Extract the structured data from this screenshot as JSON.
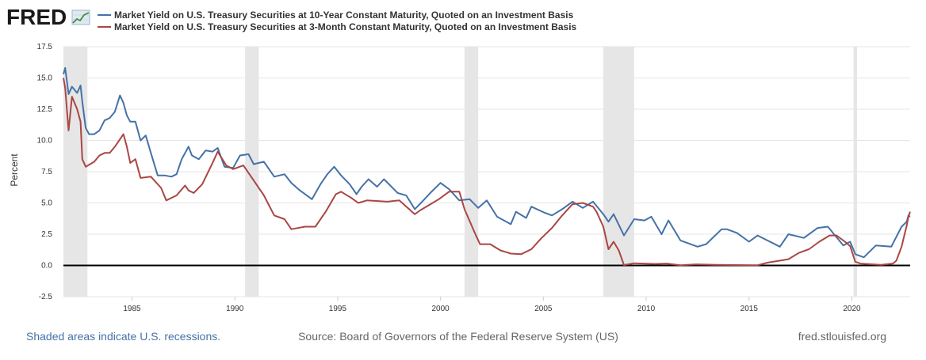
{
  "brand": {
    "logo_text": "FRED"
  },
  "footer": {
    "recession_note": "Shaded areas indicate U.S. recessions.",
    "source": "Source: Board of Governors of the Federal Reserve System (US)",
    "site": "fred.stlouisfed.org"
  },
  "colors": {
    "series_10y": "#4572a7",
    "series_3m": "#aa4643",
    "recession_band": "#e6e6e6",
    "link": "#4572a7",
    "footer_text": "#666666",
    "grid": "#e6e6e6",
    "zero_line": "#000000"
  },
  "chart_data": {
    "type": "line",
    "title": "",
    "xlabel": "",
    "ylabel": "Percent",
    "xlim": [
      "1981-09",
      "2022-11"
    ],
    "ylim": [
      -2.5,
      17.5
    ],
    "yticks": [
      "17.5",
      "15.0",
      "12.5",
      "10.0",
      "7.5",
      "5.0",
      "2.5",
      "0.0",
      "-2.5"
    ],
    "xticks": [
      "1985",
      "1990",
      "1995",
      "2000",
      "2005",
      "2010",
      "2015",
      "2020"
    ],
    "grid": true,
    "legend_position": "top-left",
    "recessions": [
      {
        "start": "1981-07",
        "end": "1982-11"
      },
      {
        "start": "1990-07",
        "end": "1991-03"
      },
      {
        "start": "2001-03",
        "end": "2001-11"
      },
      {
        "start": "2007-12",
        "end": "2009-06"
      },
      {
        "start": "2020-02",
        "end": "2020-04"
      }
    ],
    "series": [
      {
        "name": "Market Yield on U.S. Treasury Securities at 10-Year Constant Maturity, Quoted on an Investment Basis",
        "color": "#4572a7",
        "points": [
          [
            "1981-09",
            15.3
          ],
          [
            "1981-10",
            15.8
          ],
          [
            "1981-12",
            13.7
          ],
          [
            "1982-02",
            14.3
          ],
          [
            "1982-05",
            13.8
          ],
          [
            "1982-07",
            14.4
          ],
          [
            "1982-08",
            13.1
          ],
          [
            "1982-10",
            11.0
          ],
          [
            "1982-12",
            10.5
          ],
          [
            "1983-03",
            10.5
          ],
          [
            "1983-06",
            10.8
          ],
          [
            "1983-09",
            11.6
          ],
          [
            "1983-12",
            11.8
          ],
          [
            "1984-03",
            12.3
          ],
          [
            "1984-06",
            13.6
          ],
          [
            "1984-08",
            13.0
          ],
          [
            "1984-10",
            12.0
          ],
          [
            "1984-12",
            11.5
          ],
          [
            "1985-03",
            11.5
          ],
          [
            "1985-06",
            10.0
          ],
          [
            "1985-09",
            10.4
          ],
          [
            "1985-12",
            9.0
          ],
          [
            "1986-04",
            7.2
          ],
          [
            "1986-08",
            7.2
          ],
          [
            "1986-12",
            7.1
          ],
          [
            "1987-03",
            7.3
          ],
          [
            "1987-06",
            8.5
          ],
          [
            "1987-10",
            9.5
          ],
          [
            "1987-12",
            8.8
          ],
          [
            "1988-04",
            8.5
          ],
          [
            "1988-08",
            9.2
          ],
          [
            "1988-12",
            9.1
          ],
          [
            "1989-03",
            9.4
          ],
          [
            "1989-07",
            7.9
          ],
          [
            "1989-12",
            7.8
          ],
          [
            "1990-04",
            8.8
          ],
          [
            "1990-09",
            8.9
          ],
          [
            "1990-12",
            8.1
          ],
          [
            "1991-06",
            8.3
          ],
          [
            "1991-12",
            7.1
          ],
          [
            "1992-06",
            7.3
          ],
          [
            "1992-10",
            6.6
          ],
          [
            "1993-03",
            6.0
          ],
          [
            "1993-10",
            5.3
          ],
          [
            "1994-03",
            6.5
          ],
          [
            "1994-07",
            7.3
          ],
          [
            "1994-11",
            7.9
          ],
          [
            "1995-03",
            7.2
          ],
          [
            "1995-08",
            6.5
          ],
          [
            "1995-12",
            5.7
          ],
          [
            "1996-03",
            6.3
          ],
          [
            "1996-07",
            6.9
          ],
          [
            "1996-12",
            6.3
          ],
          [
            "1997-04",
            6.9
          ],
          [
            "1997-12",
            5.8
          ],
          [
            "1998-05",
            5.6
          ],
          [
            "1998-10",
            4.5
          ],
          [
            "1999-03",
            5.2
          ],
          [
            "1999-07",
            5.8
          ],
          [
            "2000-01",
            6.6
          ],
          [
            "2000-06",
            6.1
          ],
          [
            "2000-12",
            5.2
          ],
          [
            "2001-06",
            5.3
          ],
          [
            "2001-11",
            4.6
          ],
          [
            "2002-04",
            5.2
          ],
          [
            "2002-10",
            3.9
          ],
          [
            "2003-06",
            3.3
          ],
          [
            "2003-09",
            4.3
          ],
          [
            "2004-03",
            3.8
          ],
          [
            "2004-06",
            4.7
          ],
          [
            "2005-02",
            4.2
          ],
          [
            "2005-06",
            4.0
          ],
          [
            "2005-12",
            4.5
          ],
          [
            "2006-06",
            5.1
          ],
          [
            "2006-12",
            4.6
          ],
          [
            "2007-06",
            5.1
          ],
          [
            "2007-12",
            4.1
          ],
          [
            "2008-03",
            3.5
          ],
          [
            "2008-06",
            4.1
          ],
          [
            "2008-12",
            2.4
          ],
          [
            "2009-06",
            3.7
          ],
          [
            "2009-12",
            3.6
          ],
          [
            "2010-04",
            3.9
          ],
          [
            "2010-10",
            2.5
          ],
          [
            "2011-02",
            3.6
          ],
          [
            "2011-09",
            2.0
          ],
          [
            "2012-07",
            1.5
          ],
          [
            "2012-12",
            1.7
          ],
          [
            "2013-09",
            2.9
          ],
          [
            "2013-12",
            2.9
          ],
          [
            "2014-06",
            2.6
          ],
          [
            "2015-01",
            1.9
          ],
          [
            "2015-06",
            2.4
          ],
          [
            "2016-07",
            1.5
          ],
          [
            "2016-12",
            2.5
          ],
          [
            "2017-09",
            2.2
          ],
          [
            "2018-05",
            3.0
          ],
          [
            "2018-11",
            3.1
          ],
          [
            "2019-08",
            1.6
          ],
          [
            "2019-12",
            1.9
          ],
          [
            "2020-03",
            0.9
          ],
          [
            "2020-08",
            0.65
          ],
          [
            "2021-03",
            1.6
          ],
          [
            "2021-12",
            1.5
          ],
          [
            "2022-06",
            3.1
          ],
          [
            "2022-09",
            3.5
          ],
          [
            "2022-10",
            4.0
          ],
          [
            "2022-11",
            3.9
          ]
        ]
      },
      {
        "name": "Market Yield on U.S. Treasury Securities at 3-Month Constant Maturity, Quoted on an Investment Basis",
        "color": "#aa4643",
        "points": [
          [
            "1981-09",
            15.0
          ],
          [
            "1981-10",
            14.2
          ],
          [
            "1981-12",
            10.8
          ],
          [
            "1982-02",
            13.5
          ],
          [
            "1982-05",
            12.5
          ],
          [
            "1982-07",
            11.5
          ],
          [
            "1982-08",
            8.5
          ],
          [
            "1982-10",
            7.9
          ],
          [
            "1983-03",
            8.3
          ],
          [
            "1983-06",
            8.8
          ],
          [
            "1983-09",
            9.0
          ],
          [
            "1983-12",
            9.0
          ],
          [
            "1984-03",
            9.5
          ],
          [
            "1984-08",
            10.5
          ],
          [
            "1984-10",
            9.5
          ],
          [
            "1984-12",
            8.2
          ],
          [
            "1985-03",
            8.5
          ],
          [
            "1985-06",
            7.0
          ],
          [
            "1985-12",
            7.1
          ],
          [
            "1986-06",
            6.2
          ],
          [
            "1986-09",
            5.2
          ],
          [
            "1987-03",
            5.6
          ],
          [
            "1987-08",
            6.4
          ],
          [
            "1987-10",
            6.0
          ],
          [
            "1988-01",
            5.8
          ],
          [
            "1988-06",
            6.5
          ],
          [
            "1988-12",
            8.2
          ],
          [
            "1989-03",
            9.1
          ],
          [
            "1989-08",
            8.0
          ],
          [
            "1989-12",
            7.7
          ],
          [
            "1990-06",
            8.0
          ],
          [
            "1990-12",
            6.8
          ],
          [
            "1991-06",
            5.6
          ],
          [
            "1991-12",
            4.0
          ],
          [
            "1992-06",
            3.7
          ],
          [
            "1992-10",
            2.9
          ],
          [
            "1993-06",
            3.1
          ],
          [
            "1993-12",
            3.1
          ],
          [
            "1994-06",
            4.3
          ],
          [
            "1994-12",
            5.7
          ],
          [
            "1995-03",
            5.9
          ],
          [
            "1995-09",
            5.4
          ],
          [
            "1996-01",
            5.0
          ],
          [
            "1996-06",
            5.2
          ],
          [
            "1997-06",
            5.1
          ],
          [
            "1998-01",
            5.2
          ],
          [
            "1998-10",
            4.1
          ],
          [
            "1999-01",
            4.4
          ],
          [
            "1999-12",
            5.3
          ],
          [
            "2000-06",
            5.9
          ],
          [
            "2000-12",
            5.9
          ],
          [
            "2001-03",
            4.5
          ],
          [
            "2001-09",
            2.6
          ],
          [
            "2001-12",
            1.7
          ],
          [
            "2002-06",
            1.7
          ],
          [
            "2002-12",
            1.2
          ],
          [
            "2003-06",
            0.95
          ],
          [
            "2003-12",
            0.9
          ],
          [
            "2004-06",
            1.3
          ],
          [
            "2004-12",
            2.2
          ],
          [
            "2005-06",
            3.0
          ],
          [
            "2005-12",
            4.0
          ],
          [
            "2006-06",
            4.9
          ],
          [
            "2006-12",
            5.0
          ],
          [
            "2007-06",
            4.7
          ],
          [
            "2007-08",
            4.3
          ],
          [
            "2007-12",
            3.1
          ],
          [
            "2008-03",
            1.3
          ],
          [
            "2008-06",
            1.9
          ],
          [
            "2008-09",
            1.2
          ],
          [
            "2008-12",
            0.03
          ],
          [
            "2009-06",
            0.18
          ],
          [
            "2010-06",
            0.12
          ],
          [
            "2011-01",
            0.15
          ],
          [
            "2011-09",
            0.02
          ],
          [
            "2012-06",
            0.09
          ],
          [
            "2013-06",
            0.05
          ],
          [
            "2014-06",
            0.03
          ],
          [
            "2015-06",
            0.02
          ],
          [
            "2015-12",
            0.23
          ],
          [
            "2016-12",
            0.5
          ],
          [
            "2017-06",
            1.0
          ],
          [
            "2017-12",
            1.3
          ],
          [
            "2018-06",
            1.9
          ],
          [
            "2018-12",
            2.4
          ],
          [
            "2019-04",
            2.4
          ],
          [
            "2019-09",
            1.9
          ],
          [
            "2019-12",
            1.55
          ],
          [
            "2020-03",
            0.3
          ],
          [
            "2020-06",
            0.15
          ],
          [
            "2021-06",
            0.05
          ],
          [
            "2022-01",
            0.15
          ],
          [
            "2022-03",
            0.4
          ],
          [
            "2022-06",
            1.5
          ],
          [
            "2022-09",
            3.2
          ],
          [
            "2022-10",
            3.9
          ],
          [
            "2022-11",
            4.3
          ]
        ]
      }
    ]
  }
}
